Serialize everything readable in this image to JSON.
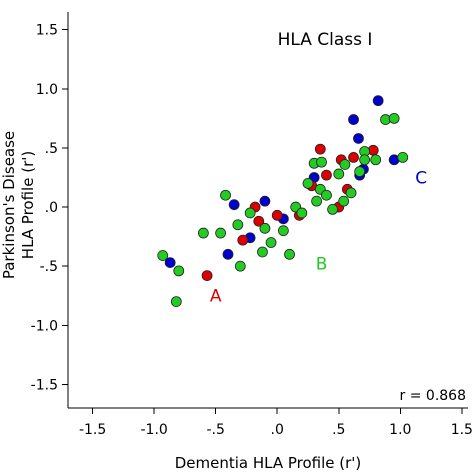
{
  "chart_data": {
    "type": "scatter",
    "title": "HLA Class I",
    "xlabel": "Dementia HLA Profile (r')",
    "ylabel_line1": "Parkinson's Disease",
    "ylabel_line2": "HLA Profile (r')",
    "xlim": [
      -1.7,
      1.55
    ],
    "ylim": [
      -1.7,
      1.65
    ],
    "x_ticks": [
      -1.5,
      -1.0,
      -0.5,
      0.0,
      0.5,
      1.0,
      1.5
    ],
    "x_tick_labels": [
      "-1.5",
      "-1.0",
      "-.5",
      ".0",
      ".5",
      "1.0",
      "1.5"
    ],
    "y_ticks": [
      1.5,
      1.0,
      0.5,
      0.0,
      -0.5,
      -1.0,
      -1.5
    ],
    "y_tick_labels": [
      "1.5",
      "1.0",
      ".5",
      ".0",
      "-.5",
      "-1.0",
      "-1.5"
    ],
    "correlation_text": "r = 0.868",
    "grid": false,
    "series": [
      {
        "color": "#0000cc",
        "points": [
          [
            -0.87,
            -0.47
          ],
          [
            -0.35,
            0.02
          ],
          [
            -0.4,
            -0.4
          ],
          [
            -0.22,
            -0.26
          ],
          [
            -0.1,
            0.05
          ],
          [
            0.05,
            -0.1
          ],
          [
            0.3,
            0.25
          ],
          [
            0.62,
            0.74
          ],
          [
            0.66,
            0.58
          ],
          [
            0.82,
            0.9
          ],
          [
            0.7,
            0.32
          ],
          [
            0.95,
            0.4
          ],
          [
            0.67,
            0.27
          ]
        ]
      },
      {
        "color": "#dd0000",
        "points": [
          [
            -0.57,
            -0.58
          ],
          [
            -0.18,
            0.0
          ],
          [
            -0.28,
            -0.28
          ],
          [
            0.0,
            -0.07
          ],
          [
            0.18,
            -0.07
          ],
          [
            0.35,
            0.49
          ],
          [
            0.28,
            0.18
          ],
          [
            0.4,
            0.27
          ],
          [
            0.5,
            0.0
          ],
          [
            0.62,
            0.42
          ],
          [
            0.78,
            0.48
          ],
          [
            0.52,
            0.4
          ],
          [
            0.57,
            0.15
          ],
          [
            -0.15,
            -0.12
          ]
        ]
      },
      {
        "color": "#22cc22",
        "points": [
          [
            -0.93,
            -0.41
          ],
          [
            -0.8,
            -0.54
          ],
          [
            -0.82,
            -0.8
          ],
          [
            -0.6,
            -0.22
          ],
          [
            -0.46,
            -0.22
          ],
          [
            -0.42,
            0.1
          ],
          [
            -0.32,
            -0.15
          ],
          [
            -0.3,
            -0.5
          ],
          [
            -0.22,
            -0.05
          ],
          [
            -0.12,
            -0.38
          ],
          [
            -0.1,
            -0.18
          ],
          [
            -0.05,
            -0.3
          ],
          [
            0.05,
            -0.2
          ],
          [
            0.1,
            -0.4
          ],
          [
            0.15,
            0.0
          ],
          [
            0.2,
            -0.05
          ],
          [
            0.3,
            0.37
          ],
          [
            0.32,
            0.05
          ],
          [
            0.35,
            0.15
          ],
          [
            0.4,
            0.1
          ],
          [
            0.45,
            -0.02
          ],
          [
            0.5,
            0.28
          ],
          [
            0.55,
            0.36
          ],
          [
            0.6,
            0.12
          ],
          [
            0.67,
            0.3
          ],
          [
            0.71,
            0.47
          ],
          [
            0.71,
            0.4
          ],
          [
            0.8,
            0.4
          ],
          [
            0.88,
            0.74
          ],
          [
            0.95,
            0.75
          ],
          [
            1.02,
            0.42
          ],
          [
            0.36,
            0.38
          ],
          [
            0.54,
            0.05
          ],
          [
            0.25,
            0.2
          ]
        ]
      }
    ],
    "annotations": [
      {
        "text": "A",
        "x": -0.5,
        "y": -0.8,
        "color": "#dd0000"
      },
      {
        "text": "B",
        "x": 0.36,
        "y": -0.53,
        "color": "#22cc22"
      },
      {
        "text": "C",
        "x": 1.17,
        "y": 0.2,
        "color": "#0000cc"
      }
    ]
  }
}
